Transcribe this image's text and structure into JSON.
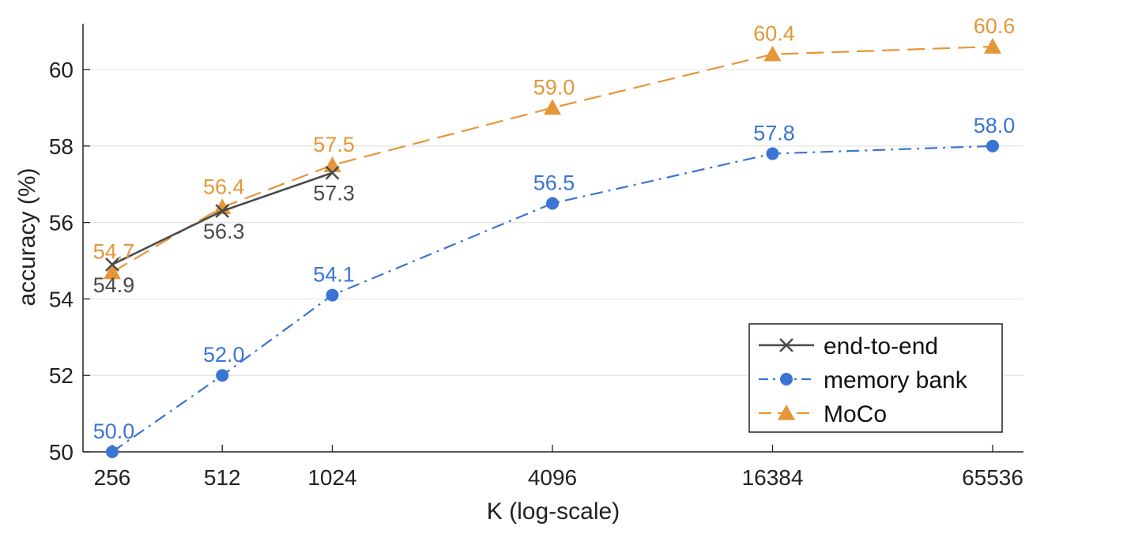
{
  "chart_data": {
    "type": "line",
    "xlabel": "K (log-scale)",
    "ylabel": "accuracy (%)",
    "x_scale": "log2",
    "x": [
      256,
      512,
      1024,
      4096,
      16384,
      65536
    ],
    "xlim": [
      256,
      65536
    ],
    "ylim": [
      50,
      61.2
    ],
    "yticks": [
      50,
      52,
      54,
      56,
      58,
      60
    ],
    "grid": true,
    "legend_position": "bottom-right",
    "series": [
      {
        "name": "end-to-end",
        "color": "#4a4a4a",
        "marker": "x-mark",
        "line_style": "solid",
        "x": [
          256,
          512,
          1024
        ],
        "values": [
          54.9,
          56.3,
          57.3
        ],
        "labels": [
          "54.9",
          "56.3",
          "57.3"
        ],
        "label_position": "below"
      },
      {
        "name": "memory bank",
        "color": "#3a74d4",
        "marker": "circle",
        "line_style": "dash-dot",
        "x": [
          256,
          512,
          1024,
          4096,
          16384,
          65536
        ],
        "values": [
          50.0,
          52.0,
          54.1,
          56.5,
          57.8,
          58.0
        ],
        "labels": [
          "50.0",
          "52.0",
          "54.1",
          "56.5",
          "57.8",
          "58.0"
        ],
        "label_position": "above"
      },
      {
        "name": "MoCo",
        "color": "#e59638",
        "marker": "triangle",
        "line_style": "dashed",
        "x": [
          256,
          512,
          1024,
          4096,
          16384,
          65536
        ],
        "values": [
          54.7,
          56.4,
          57.5,
          59.0,
          60.4,
          60.6
        ],
        "labels": [
          "54.7",
          "56.4",
          "57.5",
          "59.0",
          "60.4",
          "60.6"
        ],
        "label_position": "above"
      }
    ]
  }
}
